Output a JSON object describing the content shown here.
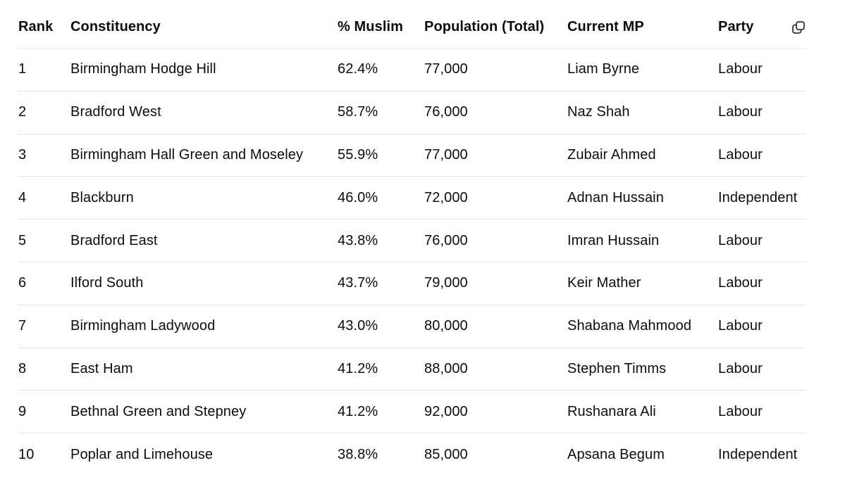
{
  "table": {
    "columns": {
      "rank": "Rank",
      "constituency": "Constituency",
      "muslim": "% Muslim",
      "population": "Population (Total)",
      "mp": "Current MP",
      "party": "Party"
    },
    "copy_icon": "copy-icon",
    "rows": [
      {
        "rank": "1",
        "constituency": "Birmingham Hodge Hill",
        "muslim": "62.4%",
        "population": "77,000",
        "mp": "Liam Byrne",
        "party": "Labour"
      },
      {
        "rank": "2",
        "constituency": "Bradford West",
        "muslim": "58.7%",
        "population": "76,000",
        "mp": "Naz Shah",
        "party": "Labour"
      },
      {
        "rank": "3",
        "constituency": "Birmingham Hall Green and Moseley",
        "muslim": "55.9%",
        "population": "77,000",
        "mp": "Zubair Ahmed",
        "party": "Labour"
      },
      {
        "rank": "4",
        "constituency": "Blackburn",
        "muslim": "46.0%",
        "population": "72,000",
        "mp": "Adnan Hussain",
        "party": "Independent"
      },
      {
        "rank": "5",
        "constituency": "Bradford East",
        "muslim": "43.8%",
        "population": "76,000",
        "mp": "Imran Hussain",
        "party": "Labour"
      },
      {
        "rank": "6",
        "constituency": "Ilford South",
        "muslim": "43.7%",
        "population": "79,000",
        "mp": "Keir Mather",
        "party": "Labour"
      },
      {
        "rank": "7",
        "constituency": "Birmingham Ladywood",
        "muslim": "43.0%",
        "population": "80,000",
        "mp": "Shabana Mahmood",
        "party": "Labour"
      },
      {
        "rank": "8",
        "constituency": "East Ham",
        "muslim": "41.2%",
        "population": "88,000",
        "mp": "Stephen Timms",
        "party": "Labour"
      },
      {
        "rank": "9",
        "constituency": "Bethnal Green and Stepney",
        "muslim": "41.2%",
        "population": "92,000",
        "mp": "Rushanara Ali",
        "party": "Labour"
      },
      {
        "rank": "10",
        "constituency": "Poplar and Limehouse",
        "muslim": "38.8%",
        "population": "85,000",
        "mp": "Apsana Begum",
        "party": "Independent"
      }
    ]
  }
}
